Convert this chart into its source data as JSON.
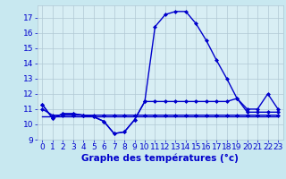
{
  "xlabel": "Graphe des températures (°c)",
  "hours": [
    0,
    1,
    2,
    3,
    4,
    5,
    6,
    7,
    8,
    9,
    10,
    11,
    12,
    13,
    14,
    15,
    16,
    17,
    18,
    19,
    20,
    21,
    22,
    23
  ],
  "temp_main": [
    11.3,
    10.4,
    10.7,
    10.7,
    10.6,
    10.5,
    10.2,
    9.4,
    9.5,
    10.3,
    11.5,
    16.4,
    17.2,
    17.4,
    17.4,
    16.6,
    15.5,
    14.2,
    13.0,
    11.7,
    11.0,
    11.0,
    12.0,
    11.0
  ],
  "temp_min": [
    11.3,
    10.4,
    10.7,
    10.7,
    10.6,
    10.5,
    10.2,
    9.4,
    9.5,
    10.3,
    11.5,
    11.5,
    11.5,
    11.5,
    11.5,
    11.5,
    11.5,
    11.5,
    11.5,
    11.7,
    10.8,
    10.8,
    10.8,
    10.8
  ],
  "temp_line2": [
    11.0,
    10.6,
    10.6,
    10.6,
    10.6,
    10.6,
    10.6,
    10.6,
    10.6,
    10.6,
    10.6,
    10.6,
    10.6,
    10.6,
    10.6,
    10.6,
    10.6,
    10.6,
    10.6,
    10.6,
    10.6,
    10.6,
    10.6,
    10.6
  ],
  "temp_flat": [
    10.5,
    10.5,
    10.5,
    10.5,
    10.5,
    10.5,
    10.5,
    10.5,
    10.5,
    10.5,
    10.5,
    10.5,
    10.5,
    10.5,
    10.5,
    10.5,
    10.5,
    10.5,
    10.5,
    10.5,
    10.5,
    10.5,
    10.5,
    10.5
  ],
  "line_color": "#0000cc",
  "bg_color": "#c8e8f0",
  "plot_bg": "#d8eef4",
  "grid_color": "#b0c8d4",
  "ylim": [
    9,
    17.8
  ],
  "yticks": [
    9,
    10,
    11,
    12,
    13,
    14,
    15,
    16,
    17
  ],
  "xticks": [
    0,
    1,
    2,
    3,
    4,
    5,
    6,
    7,
    8,
    9,
    10,
    11,
    12,
    13,
    14,
    15,
    16,
    17,
    18,
    19,
    20,
    21,
    22,
    23
  ],
  "marker": "D",
  "markersize": 2.0,
  "linewidth": 1.0,
  "xlabel_fontsize": 7.5,
  "tick_fontsize": 6.5
}
